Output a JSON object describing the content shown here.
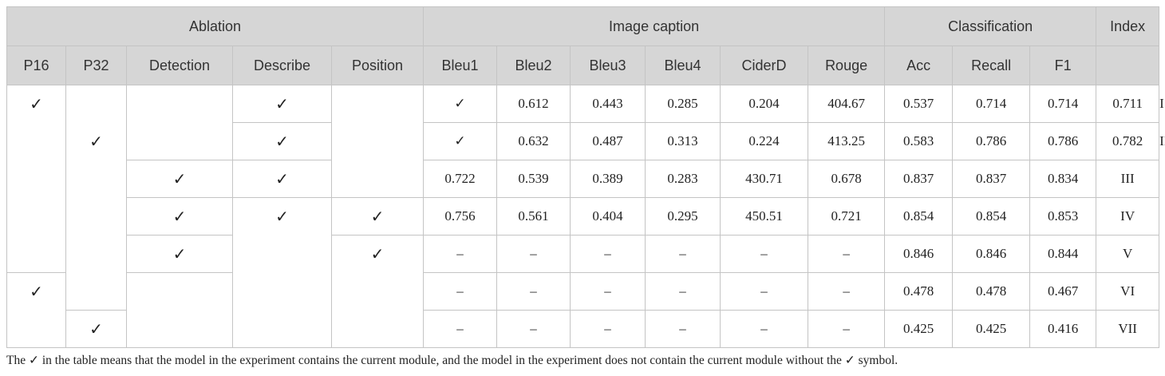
{
  "table": {
    "group_headers": [
      "Ablation",
      "Image caption",
      "Classification",
      "Index"
    ],
    "headers": [
      "P16",
      "P32",
      "Detection",
      "Describe",
      "Position",
      "Bleu1",
      "Bleu2",
      "Bleu3",
      "Bleu4",
      "CiderD",
      "Rouge",
      "Acc",
      "Recall",
      "F1"
    ],
    "rows": [
      [
        "✓",
        "✓",
        "0.612",
        "0.443",
        "0.285",
        "0.204",
        "404.67",
        "0.537",
        "0.714",
        "0.714",
        "0.711",
        "I"
      ],
      [
        "✓",
        "✓",
        "0.632",
        "0.487",
        "0.313",
        "0.224",
        "413.25",
        "0.583",
        "0.786",
        "0.786",
        "0.782",
        "II"
      ],
      [
        "✓",
        "✓",
        "0.722",
        "0.539",
        "0.389",
        "0.283",
        "430.71",
        "0.678",
        "0.837",
        "0.837",
        "0.834",
        "III"
      ],
      [
        "✓",
        "✓",
        "✓",
        "0.756",
        "0.561",
        "0.404",
        "0.295",
        "450.51",
        "0.721",
        "0.854",
        "0.854",
        "0.853",
        "IV"
      ],
      [
        "✓",
        "✓",
        "–",
        "–",
        "–",
        "–",
        "–",
        "–",
        "0.846",
        "0.846",
        "0.844",
        "V"
      ],
      [
        "✓",
        "–",
        "–",
        "–",
        "–",
        "–",
        "–",
        "0.478",
        "0.478",
        "0.467",
        "VI"
      ],
      [
        "✓",
        "–",
        "–",
        "–",
        "–",
        "–",
        "–",
        "0.425",
        "0.425",
        "0.416",
        "VII"
      ]
    ]
  },
  "footnote": "The ✓ in the table means that the model in the experiment contains the current module, and the model in the experiment does not contain the current module without the ✓ symbol."
}
